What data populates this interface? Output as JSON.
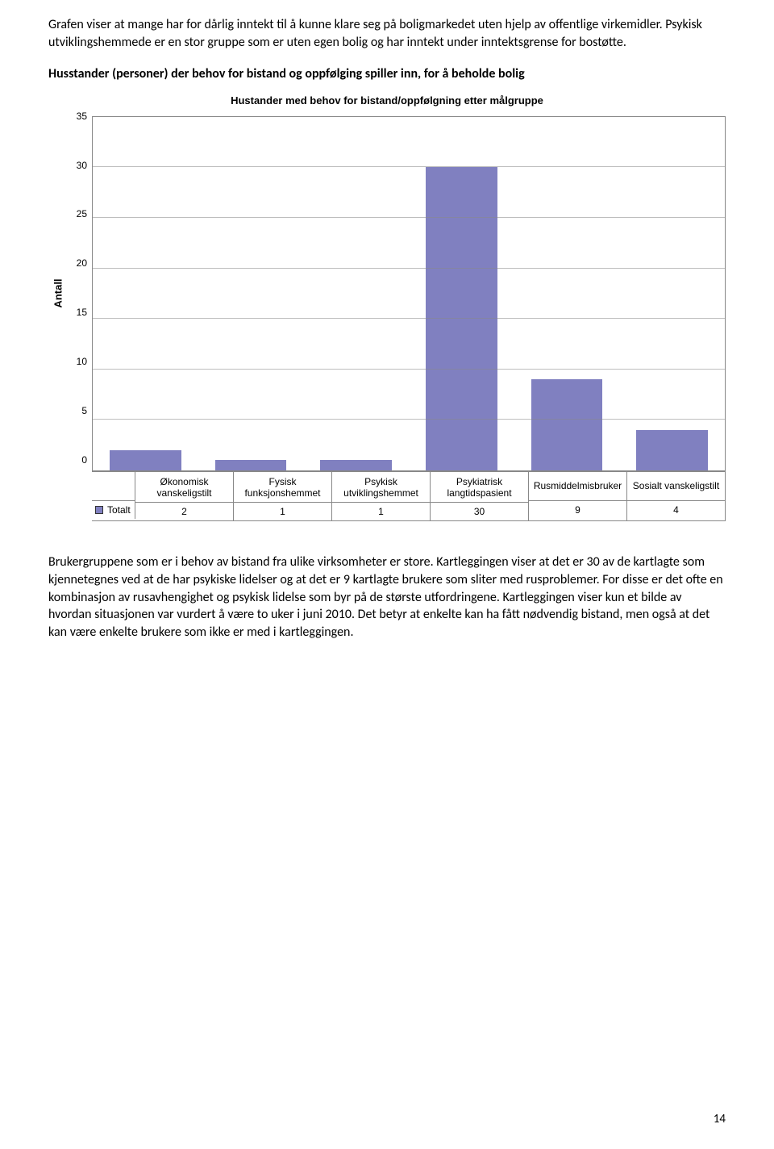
{
  "intro_p1": "Grafen viser at mange har for dårlig inntekt til å kunne klare seg på boligmarkedet uten hjelp av offentlige virkemidler. Psykisk utviklingshemmede er en stor gruppe som er uten egen bolig og har inntekt under inntektsgrense for bostøtte.",
  "heading": "Husstander (personer) der behov for bistand og oppfølging spiller inn, for å beholde bolig",
  "chart": {
    "title": "Hustander med behov for bistand/oppfølgning etter målgruppe",
    "ylabel": "Antall",
    "ylim": [
      0,
      35
    ],
    "ytick_step": 5,
    "yticks": [
      "35",
      "30",
      "25",
      "20",
      "15",
      "10",
      "5",
      "0"
    ],
    "bar_color": "#8080c0",
    "border_color": "#888888",
    "grid_color": "#888888",
    "background_color": "#ffffff",
    "categories": [
      "Økonomisk vanskeligstilt",
      "Fysisk funksjonshemmet",
      "Psykisk utviklingshemmet",
      "Psykiatrisk langtidspasient",
      "Rusmiddelmisbruker",
      "Sosialt vanskeligstilt"
    ],
    "values": [
      2,
      1,
      1,
      30,
      9,
      4
    ],
    "series_label": "Totalt",
    "legend_swatch_color": "#8080c0"
  },
  "body_p1": "Brukergruppene som er i behov av bistand fra ulike virksomheter er store. Kartleggingen viser at det er 30 av de kartlagte som kjennetegnes ved at de har psykiske lidelser og at det er 9 kartlagte brukere som sliter med rusproblemer. For disse er det ofte en kombinasjon av rusavhengighet og psykisk lidelse som byr på de største utfordringene. Kartleggingen viser kun et bilde av hvordan situasjonen var vurdert å være to uker i juni 2010. Det betyr at enkelte kan ha fått nødvendig bistand, men også at det kan være enkelte brukere som ikke er med i kartleggingen.",
  "page_number": "14"
}
